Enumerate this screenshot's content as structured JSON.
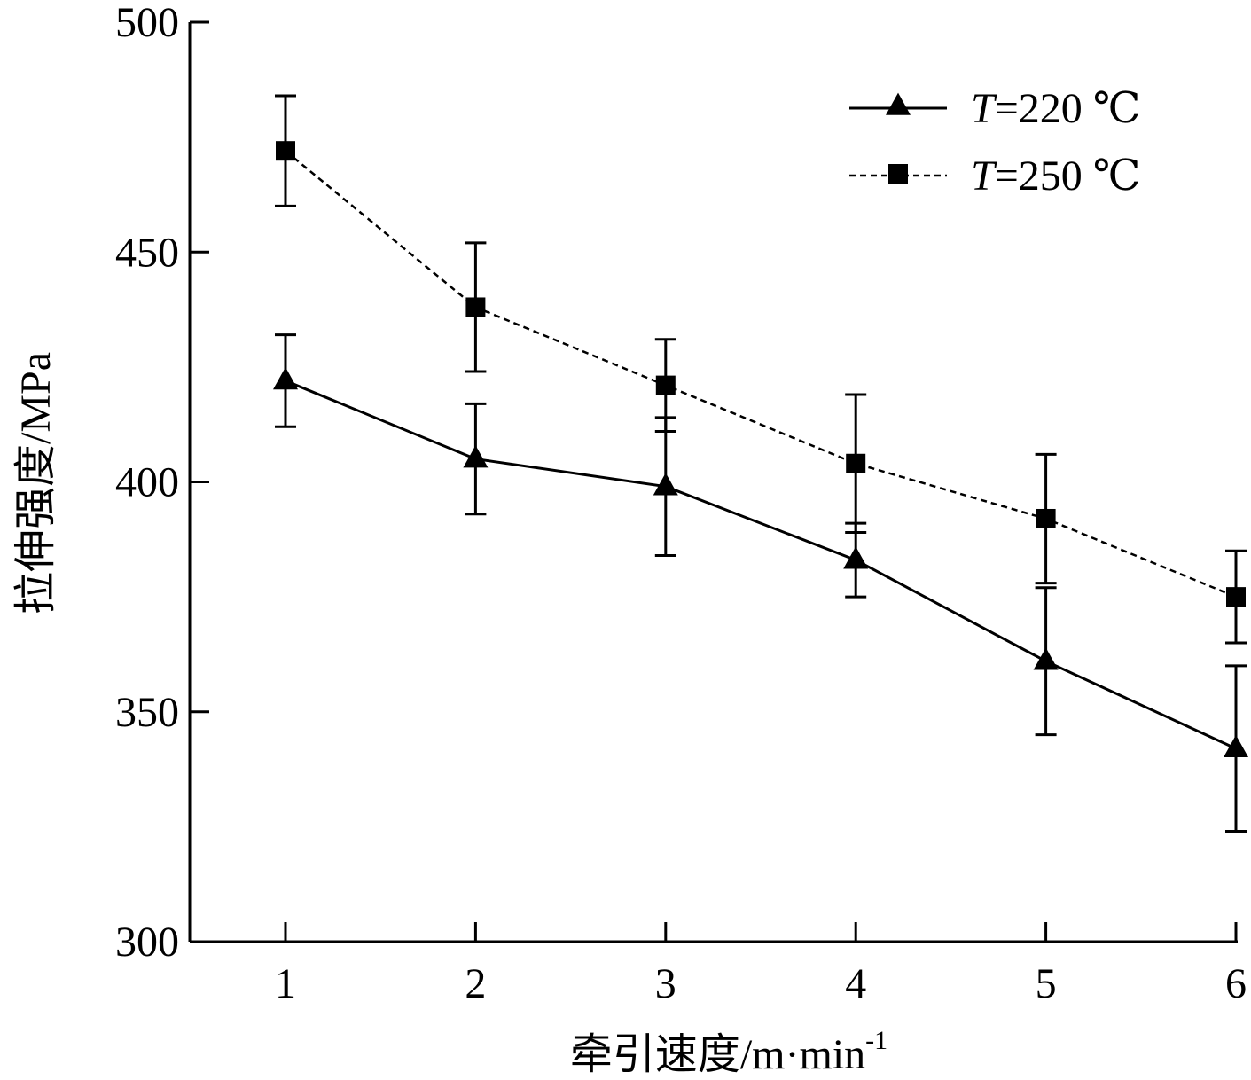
{
  "chart_data": {
    "type": "line",
    "xlabel": "牵引速度/m·min",
    "xlabel_sup": "-1",
    "ylabel": "拉伸强度/MPa",
    "x": [
      1,
      2,
      3,
      4,
      5,
      6
    ],
    "xticks": [
      "1",
      "2",
      "3",
      "4",
      "5",
      "6"
    ],
    "ylim": [
      300,
      500
    ],
    "yticks": [
      "300",
      "350",
      "400",
      "450",
      "500"
    ],
    "legend_position": "top-right",
    "grid": false,
    "series": [
      {
        "name_italic": "T",
        "name_rest": "=220 ℃",
        "marker": "triangle",
        "line_style": "solid",
        "values": [
          422,
          405,
          399,
          383,
          361,
          342
        ],
        "error_low": [
          412,
          393,
          384,
          375,
          345,
          324
        ],
        "error_high": [
          432,
          417,
          414,
          391,
          377,
          360
        ]
      },
      {
        "name_italic": "T",
        "name_rest": "=250 ℃",
        "marker": "square",
        "line_style": "dashed",
        "values": [
          472,
          438,
          421,
          404,
          392,
          375
        ],
        "error_low": [
          460,
          424,
          411,
          389,
          378,
          365
        ],
        "error_high": [
          484,
          452,
          431,
          419,
          406,
          385
        ]
      }
    ]
  }
}
